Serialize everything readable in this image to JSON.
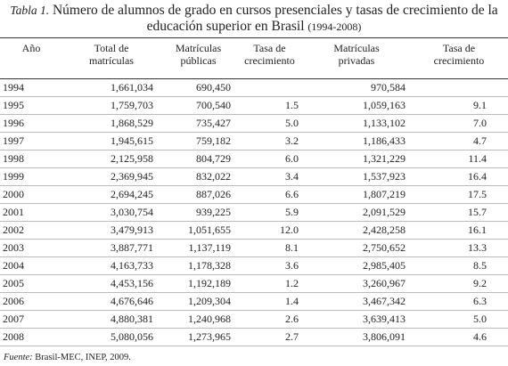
{
  "header": {
    "label": "Tabla 1.",
    "title": "Número de alumnos de grado en cursos presenciales y tasas de crecimiento de la educación superior en Brasil",
    "period": "(1994-2008)"
  },
  "table": {
    "columns": [
      [
        "Año"
      ],
      [
        "Total de",
        "matrículas"
      ],
      [
        "Matrículas",
        "públicas"
      ],
      [
        "Tasa de",
        "crecimiento"
      ],
      [
        "Matrículas",
        "privadas"
      ],
      [
        "Tasa de",
        "crecimiento"
      ]
    ],
    "rows": [
      [
        "1994",
        "1,661,034",
        "690,450",
        null,
        "970,584",
        null
      ],
      [
        "1995",
        "1,759,703",
        "700,540",
        "1.5",
        "1,059,163",
        "9.1"
      ],
      [
        "1996",
        "1,868,529",
        "735,427",
        "5.0",
        "1,133,102",
        "7.0"
      ],
      [
        "1997",
        "1,945,615",
        "759,182",
        "3.2",
        "1,186,433",
        "4.7"
      ],
      [
        "1998",
        "2,125,958",
        "804,729",
        "6.0",
        "1,321,229",
        "11.4"
      ],
      [
        "1999",
        "2,369,945",
        "832,022",
        "3.4",
        "1,537,923",
        "16.4"
      ],
      [
        "2000",
        "2,694,245",
        "887,026",
        "6.6",
        "1,807,219",
        "17.5"
      ],
      [
        "2001",
        "3,030,754",
        "939,225",
        "5.9",
        "2,091,529",
        "15.7"
      ],
      [
        "2002",
        "3,479,913",
        "1,051,655",
        "12.0",
        "2,428,258",
        "16.1"
      ],
      [
        "2003",
        "3,887,771",
        "1,137,119",
        "8.1",
        "2,750,652",
        "13.3"
      ],
      [
        "2004",
        "4,163,733",
        "1,178,328",
        "3.6",
        "2,985,405",
        "8.5"
      ],
      [
        "2005",
        "4,453,156",
        "1,192,189",
        "1.2",
        "3,260,967",
        "9.2"
      ],
      [
        "2006",
        "4,676,646",
        "1,209,304",
        "1.4",
        "3,467,342",
        "6.3"
      ],
      [
        "2007",
        "4,880,381",
        "1,240,968",
        "2.6",
        "3,639,413",
        "5.0"
      ],
      [
        "2008",
        "5,080,056",
        "1,273,965",
        "2.7",
        "3,806,091",
        "4.6"
      ]
    ]
  },
  "source": {
    "label": "Fuente:",
    "text": "Brasil-MEC, INEP, 2009."
  }
}
